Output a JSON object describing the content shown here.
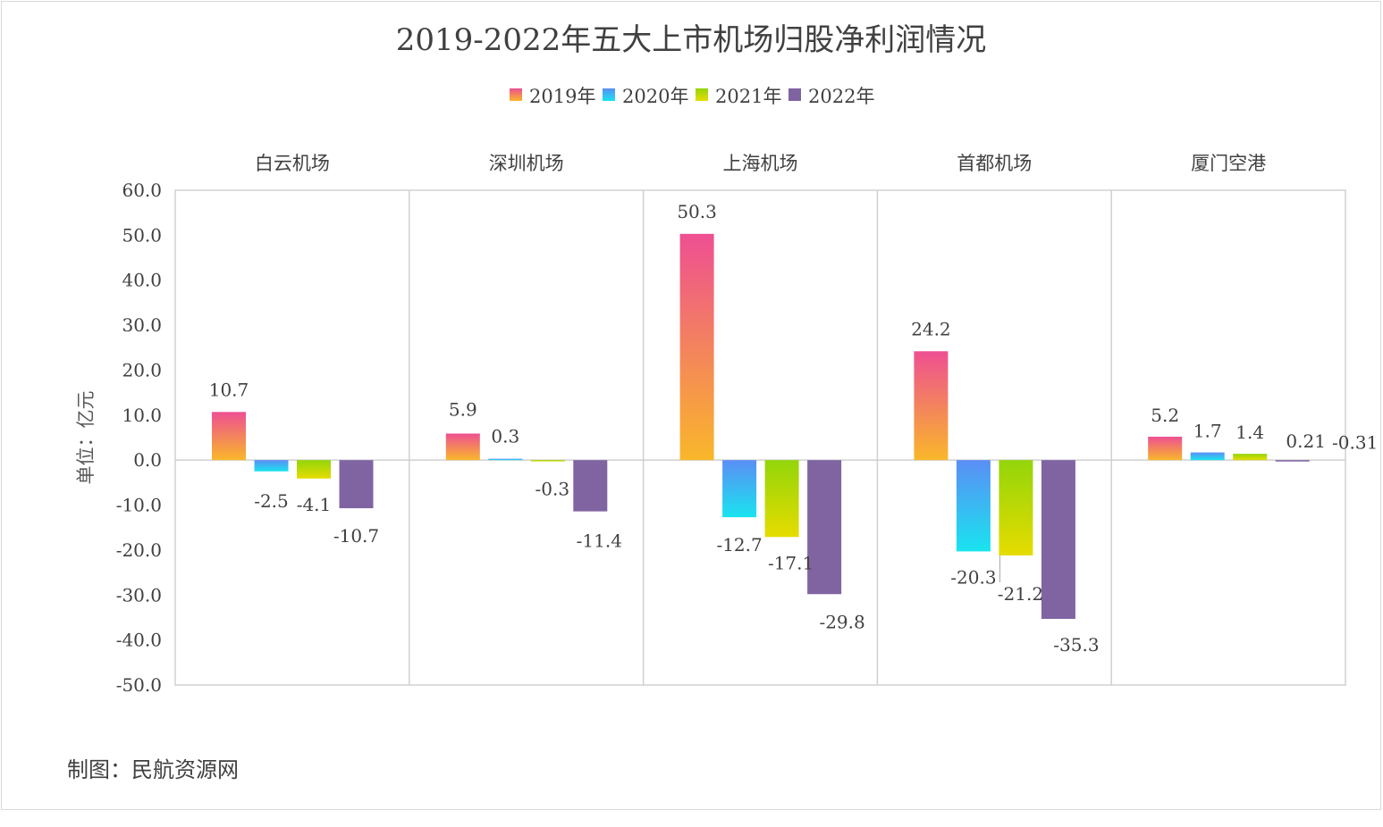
{
  "chart_data": {
    "type": "bar",
    "title": "2019-2022年五大上市机场归股净利润情况",
    "ylabel": "单位：亿元",
    "ylim": [
      -50,
      60
    ],
    "yticks": [
      "60.0",
      "50.0",
      "40.0",
      "30.0",
      "20.0",
      "10.0",
      "0.0",
      "-10.0",
      "-20.0",
      "-30.0",
      "-40.0",
      "-50.0"
    ],
    "ytick_values": [
      60,
      50,
      40,
      30,
      20,
      10,
      0,
      -10,
      -20,
      -30,
      -40,
      -50
    ],
    "legend_position": "top",
    "grid": false,
    "categories": [
      "白云机场",
      "深圳机场",
      "上海机场",
      "首都机场",
      "厦门空港"
    ],
    "series": [
      {
        "name": "2019年",
        "values": [
          10.7,
          5.9,
          50.3,
          24.2,
          5.2
        ],
        "labels": [
          "10.7",
          "5.9",
          "50.3",
          "24.2",
          "5.2"
        ],
        "color_top": "#ee4f92",
        "color_bottom": "#f9b72a"
      },
      {
        "name": "2020年",
        "values": [
          -2.5,
          0.3,
          -12.7,
          -20.3,
          1.7
        ],
        "labels": [
          "-2.5",
          "0.3",
          "-12.7",
          "-20.3",
          "1.7"
        ],
        "color_top": "#5b8ef5",
        "color_bottom": "#19e4ef"
      },
      {
        "name": "2021年",
        "values": [
          -4.1,
          -0.3,
          -17.1,
          -21.2,
          1.4
        ],
        "labels": [
          "-4.1",
          "-0.3",
          "-17.1",
          "-21.2",
          "1.4"
        ],
        "color_top": "#93d50a",
        "color_bottom": "#e6dc00"
      },
      {
        "name": "2022年",
        "values": [
          -10.7,
          -11.4,
          -29.8,
          -35.3,
          -0.31
        ],
        "labels": [
          "-10.7",
          "-11.4",
          "-29.8",
          "-35.3",
          "-0.31"
        ],
        "color_top": "#8064a2",
        "color_bottom": "#8064a2"
      }
    ],
    "extra_labels": [
      {
        "text": "0.21",
        "category": "厦门空港"
      }
    ]
  },
  "footer": {
    "source": "制图：民航资源网"
  }
}
